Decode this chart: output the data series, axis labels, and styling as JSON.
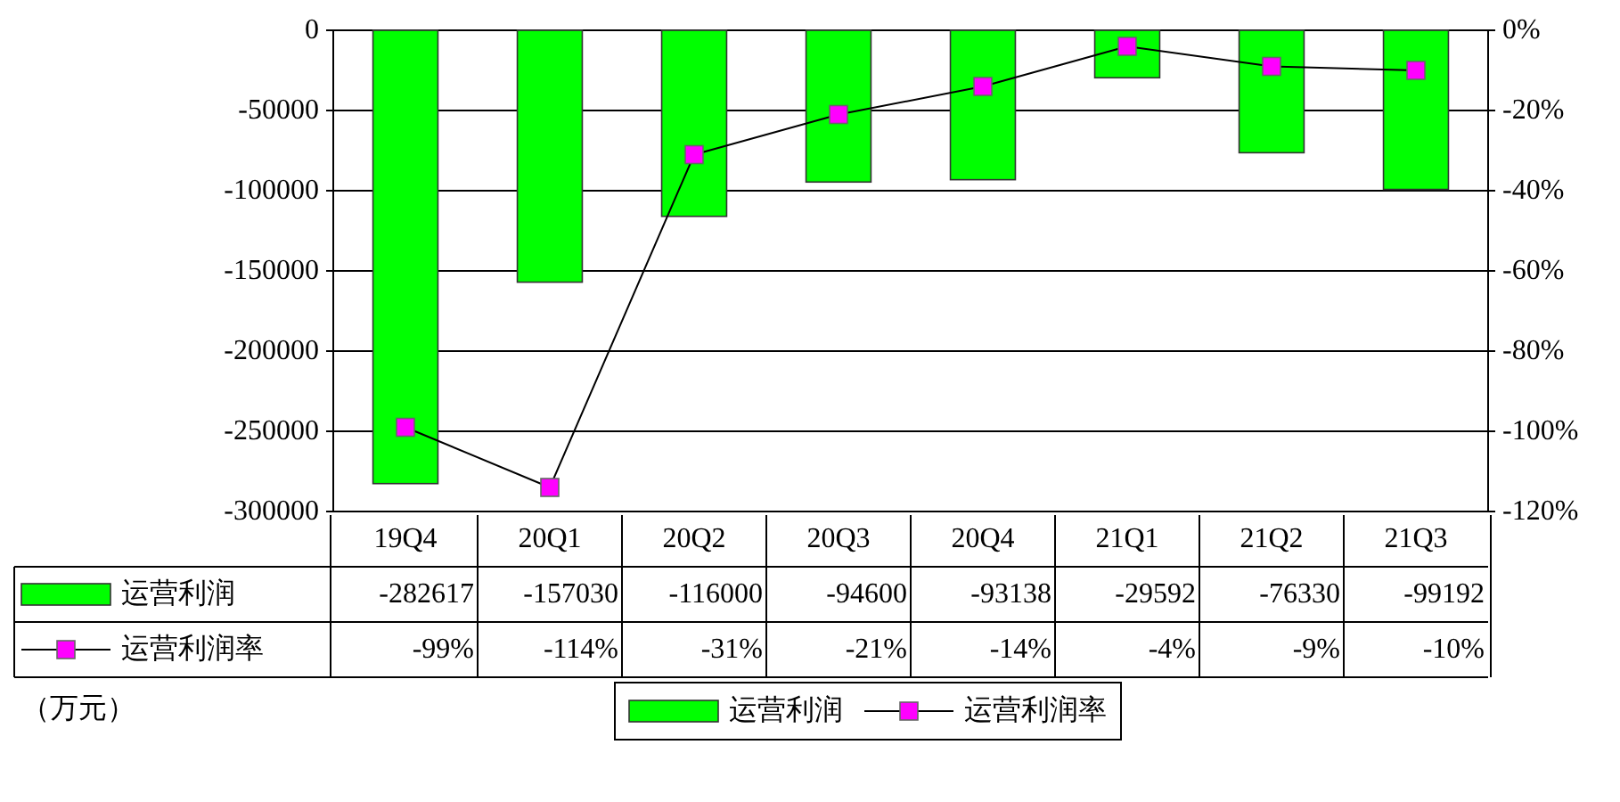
{
  "chart_data": {
    "type": "bar",
    "categories": [
      "19Q4",
      "20Q1",
      "20Q2",
      "20Q3",
      "20Q4",
      "21Q1",
      "21Q2",
      "21Q3"
    ],
    "series": [
      {
        "name": "运营利润",
        "color": "#00ff00",
        "values": [
          -282617,
          -157030,
          -116000,
          -94600,
          -93138,
          -29592,
          -76330,
          -99192
        ],
        "value_labels": [
          "-282617",
          "-157030",
          "-116000",
          "-94600",
          "-93138",
          "-29592",
          "-76330",
          "-99192"
        ]
      },
      {
        "name": "运营利润率",
        "type": "line",
        "axis": "y2",
        "color": "#ff00ff",
        "marker": "square",
        "values": [
          -99,
          -114,
          -31,
          -21,
          -14,
          -4,
          -9,
          -10
        ],
        "value_labels": [
          "-99%",
          "-114%",
          "-31%",
          "-21%",
          "-14%",
          "-4%",
          "-9%",
          "-10%"
        ]
      }
    ],
    "ylim": [
      -300000,
      0
    ],
    "yticks": [
      0,
      -50000,
      -100000,
      -150000,
      -200000,
      -250000,
      -300000
    ],
    "y2lim": [
      -120,
      0
    ],
    "y2ticks": [
      {
        "value": 0,
        "label": "0%"
      },
      {
        "value": -20,
        "label": "-20%"
      },
      {
        "value": -40,
        "label": "-40%"
      },
      {
        "value": -60,
        "label": "-60%"
      },
      {
        "value": -80,
        "label": "-80%"
      },
      {
        "value": -100,
        "label": "-100%"
      },
      {
        "value": -120,
        "label": "-120%"
      }
    ],
    "grid": "y",
    "legend": "bottom",
    "annotations": [
      "（万元）"
    ]
  }
}
